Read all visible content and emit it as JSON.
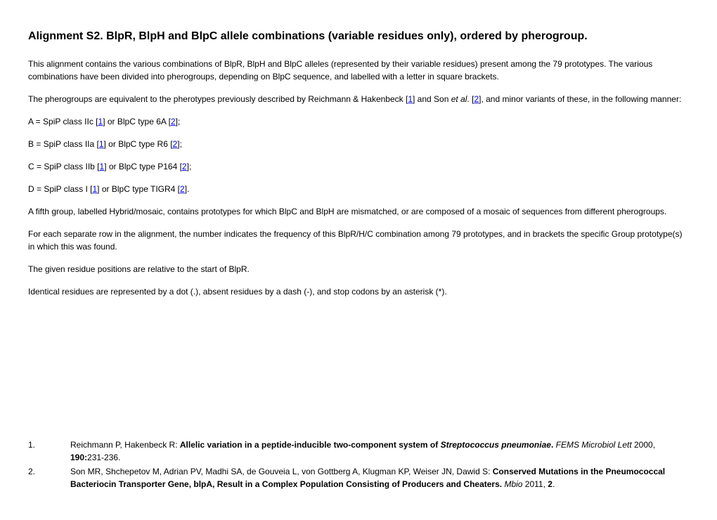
{
  "title": "Alignment S2.  BlpR, BlpH and BlpC allele combinations (variable residues only), ordered by pherogroup.",
  "p1": "This alignment contains the various combinations of BlpR, BlpH and BlpC alleles (represented by their variable residues) present among the 79 prototypes.  The various combinations have been divided into pherogroups, depending on BlpC sequence, and labelled with a letter in square brackets.",
  "p2a": "The pherogroups are equivalent to the pherotypes previously described by Reichmann & Hakenbeck [",
  "p2b": "] and Son ",
  "p2c": ". [",
  "p2d": "], and minor variants of these, in the following manner:",
  "etal": "et al",
  "lA1": "A = SpiP class IIc [",
  "lA2": "] or BlpC type 6A [",
  "lA3": "];",
  "lB1": "B = SpiP class IIa [",
  "lB2": "] or BlpC type R6 [",
  "lB3": "];",
  "lC1": "C = SpiP class IIb [",
  "lC2": "] or BlpC type P164 [",
  "lC3": "];",
  "lD1": "D = SpiP class I [",
  "lD2": "] or BlpC type TIGR4 [",
  "lD3": "].",
  "ref1": "1",
  "ref2": "2",
  "p3": "A fifth group, labelled Hybrid/mosaic, contains prototypes for which BlpC and BlpH are mismatched, or are composed of a mosaic of sequences from different pherogroups.",
  "p4": "For each separate row in the alignment, the number indicates the frequency of this BlpR/H/C combination among 79 prototypes, and in brackets the specific Group prototype(s) in which this was found.",
  "p5": "The given residue positions are relative to the start of BlpR.",
  "p6": "Identical residues are represented by a dot (.), absent residues by a dash (-), and stop codons by an asterisk (*).",
  "r1num": "1.",
  "r1a": "Reichmann P, Hakenbeck R: ",
  "r1title": "Allelic variation in a peptide-inducible two-component system of ",
  "r1sp": "Streptococcus pneumoniae",
  "r1dot": ".",
  "r1j": " FEMS Microbiol Lett ",
  "r1y": "2000, ",
  "r1vol": "190:",
  "r1pg": "231-236.",
  "r2num": "2.",
  "r2a": "Son MR, Shchepetov M, Adrian PV, Madhi SA, de Gouveia L, von Gottberg A, Klugman KP, Weiser JN, Dawid S: ",
  "r2title": "Conserved Mutations in the Pneumococcal Bacteriocin Transporter Gene, blpA, Result in a Complex Population Consisting of Producers and Cheaters.",
  "r2j": " Mbio ",
  "r2y": "2011, ",
  "r2vol": "2",
  "r2dot": "."
}
